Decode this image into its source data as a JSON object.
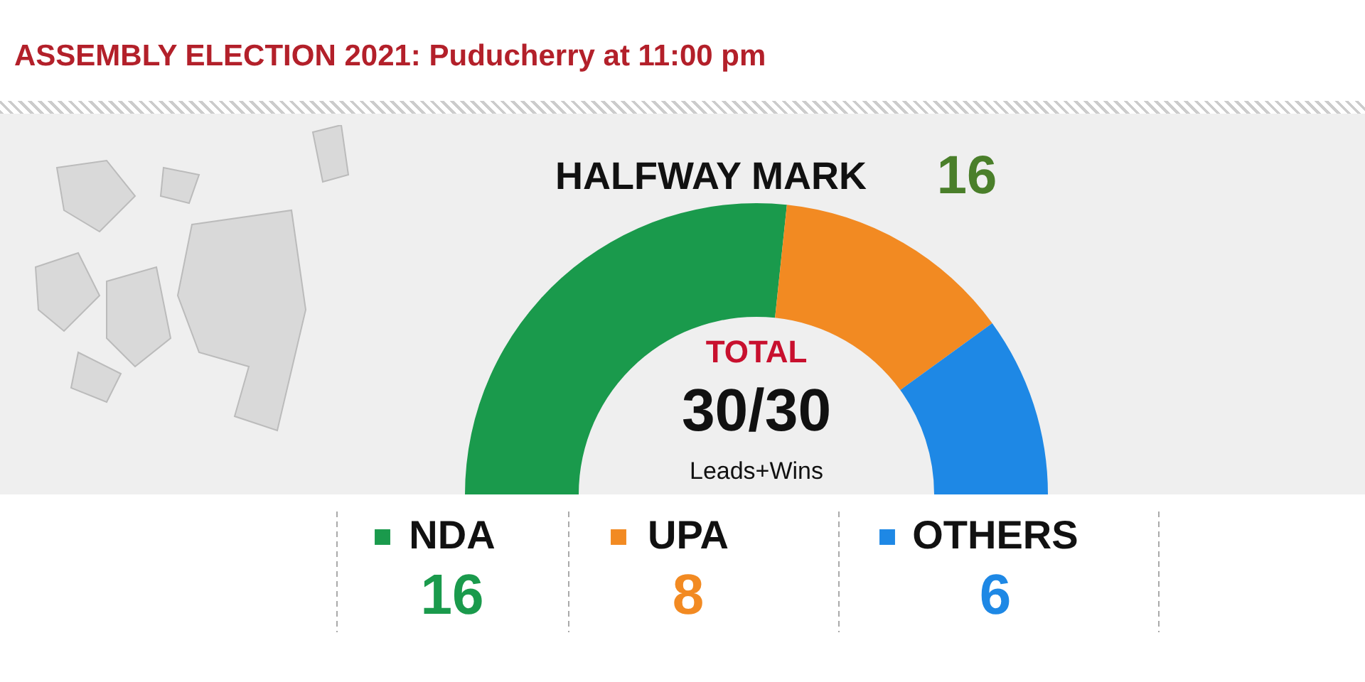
{
  "chart_data": {
    "type": "donut",
    "title": "ASSEMBLY ELECTION 2021: Puducherry at 11:00 pm",
    "categories": [
      "NDA",
      "UPA",
      "OTHERS"
    ],
    "values": [
      16,
      8,
      6
    ],
    "colors": [
      "#1a9a4c",
      "#f28a22",
      "#1e88e5"
    ],
    "data_labels": true,
    "legend": "bottom",
    "annotations": [
      "HALFWAY MARK",
      "16",
      "TOTAL",
      "30/30",
      "Leads+Wins"
    ]
  }
}
